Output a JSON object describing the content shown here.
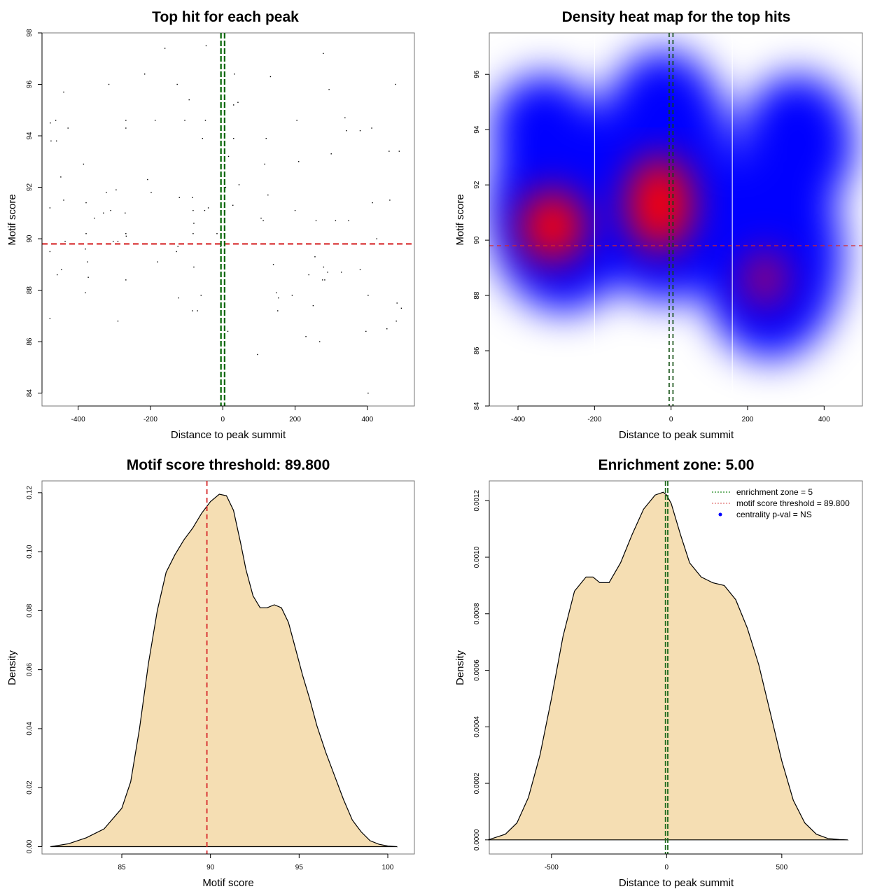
{
  "chart_data": [
    {
      "id": "scatter",
      "type": "scatter",
      "title": "Top hit for each peak",
      "xlabel": "Distance to peak summit",
      "ylabel": "Motif score",
      "xlim": [
        -500,
        530
      ],
      "ylim": [
        83.5,
        98
      ],
      "xticks": [
        -400,
        -200,
        0,
        200,
        400
      ],
      "yticks": [
        84,
        86,
        88,
        90,
        92,
        94,
        96,
        98
      ],
      "threshold_y": 89.8,
      "enrichment_zone_x": [
        -5,
        5
      ],
      "colors": {
        "points": "#000000",
        "threshold": "#d62728",
        "zone": "#006400"
      },
      "points": [
        [
          -477,
          94.5
        ],
        [
          -475,
          93.8
        ],
        [
          -462,
          94.6
        ],
        [
          -460,
          93.8
        ],
        [
          -478,
          91.2
        ],
        [
          -478,
          89.5
        ],
        [
          -478,
          86.9
        ],
        [
          -448,
          92.4
        ],
        [
          -440,
          95.7
        ],
        [
          -440,
          91.5
        ],
        [
          -436,
          89.9
        ],
        [
          -446,
          88.8
        ],
        [
          -458,
          88.6
        ],
        [
          -428,
          94.3
        ],
        [
          -385,
          92.9
        ],
        [
          -378,
          91.4
        ],
        [
          -378,
          90.2
        ],
        [
          -380,
          89.6
        ],
        [
          -374,
          89.1
        ],
        [
          -372,
          88.5
        ],
        [
          -380,
          87.9
        ],
        [
          -355,
          90.8
        ],
        [
          -315,
          96.0
        ],
        [
          -330,
          91.0
        ],
        [
          -322,
          91.8
        ],
        [
          -310,
          91.1
        ],
        [
          -303,
          89.9
        ],
        [
          -295,
          91.9
        ],
        [
          -290,
          89.9
        ],
        [
          -290,
          86.8
        ],
        [
          -268,
          94.6
        ],
        [
          -268,
          94.3
        ],
        [
          -270,
          91.0
        ],
        [
          -268,
          90.2
        ],
        [
          -267,
          90.1
        ],
        [
          -268,
          88.4
        ],
        [
          -216,
          96.4
        ],
        [
          -208,
          92.3
        ],
        [
          -198,
          91.8
        ],
        [
          -187,
          94.6
        ],
        [
          -180,
          89.1
        ],
        [
          -160,
          97.4
        ],
        [
          -126,
          96.0
        ],
        [
          -120,
          91.6
        ],
        [
          -128,
          89.5
        ],
        [
          -124,
          89.7
        ],
        [
          -122,
          87.7
        ],
        [
          -105,
          94.6
        ],
        [
          -93,
          95.4
        ],
        [
          -84,
          91.6
        ],
        [
          -82,
          91.1
        ],
        [
          -80,
          90.6
        ],
        [
          -82,
          90.2
        ],
        [
          -80,
          88.9
        ],
        [
          -84,
          87.2
        ],
        [
          -70,
          87.2
        ],
        [
          -60,
          87.8
        ],
        [
          -56,
          93.9
        ],
        [
          -50,
          91.1
        ],
        [
          -48,
          94.6
        ],
        [
          -46,
          97.5
        ],
        [
          -40,
          91.2
        ],
        [
          -16,
          90.2
        ],
        [
          -6,
          89.7
        ],
        [
          4,
          90.2
        ],
        [
          8,
          92.0
        ],
        [
          14,
          86.4
        ],
        [
          16,
          93.2
        ],
        [
          28,
          91.3
        ],
        [
          30,
          95.2
        ],
        [
          32,
          96.4
        ],
        [
          30,
          93.9
        ],
        [
          42,
          95.3
        ],
        [
          45,
          92.1
        ],
        [
          96,
          85.5
        ],
        [
          106,
          90.8
        ],
        [
          112,
          90.7
        ],
        [
          116,
          92.9
        ],
        [
          120,
          93.9
        ],
        [
          125,
          91.7
        ],
        [
          132,
          96.3
        ],
        [
          140,
          89.0
        ],
        [
          148,
          87.9
        ],
        [
          152,
          87.2
        ],
        [
          154,
          87.7
        ],
        [
          192,
          87.8
        ],
        [
          200,
          91.1
        ],
        [
          205,
          94.6
        ],
        [
          210,
          93.0
        ],
        [
          230,
          86.2
        ],
        [
          238,
          88.6
        ],
        [
          250,
          87.4
        ],
        [
          255,
          89.3
        ],
        [
          258,
          90.7
        ],
        [
          268,
          86.0
        ],
        [
          276,
          88.4
        ],
        [
          279,
          88.9
        ],
        [
          282,
          88.4
        ],
        [
          278,
          97.2
        ],
        [
          290,
          88.7
        ],
        [
          294,
          95.8
        ],
        [
          300,
          93.3
        ],
        [
          312,
          90.7
        ],
        [
          328,
          88.7
        ],
        [
          338,
          94.7
        ],
        [
          342,
          94.2
        ],
        [
          348,
          90.7
        ],
        [
          380,
          94.2
        ],
        [
          380,
          88.8
        ],
        [
          396,
          86.4
        ],
        [
          402,
          87.8
        ],
        [
          402,
          84.0
        ],
        [
          412,
          94.3
        ],
        [
          414,
          91.4
        ],
        [
          426,
          90.0
        ],
        [
          454,
          86.5
        ],
        [
          460,
          93.4
        ],
        [
          462,
          91.5
        ],
        [
          478,
          96.0
        ],
        [
          480,
          86.8
        ],
        [
          482,
          87.5
        ],
        [
          488,
          93.4
        ],
        [
          494,
          87.3
        ]
      ]
    },
    {
      "id": "heatmap",
      "type": "heatmap",
      "title": "Density heat map for the top hits",
      "xlabel": "Distance to peak summit",
      "ylabel": "Motif score",
      "xlim": [
        -475,
        500
      ],
      "ylim": [
        84,
        97.5
      ],
      "xticks": [
        -400,
        -200,
        0,
        200,
        400
      ],
      "yticks": [
        84,
        86,
        88,
        90,
        92,
        94,
        96
      ],
      "threshold_y": 89.8,
      "enrichment_zone_x": [
        -5,
        5
      ],
      "white_vertical_lines_x": [
        -200,
        160
      ],
      "colorscale": [
        "#ffffff",
        "#0000ff",
        "#ff0000"
      ],
      "density_peaks": [
        {
          "x": -310,
          "y": 90.5,
          "level": 0.85
        },
        {
          "x": -30,
          "y": 91.3,
          "level": 1.0
        },
        {
          "x": 245,
          "y": 88.6,
          "level": 0.55
        },
        {
          "x": -300,
          "y": 93.0,
          "level": 0.35
        },
        {
          "x": 300,
          "y": 93.5,
          "level": 0.3
        },
        {
          "x": 20,
          "y": 95.0,
          "level": 0.3
        }
      ]
    },
    {
      "id": "score-density",
      "type": "area",
      "title": "Motif score threshold: 89.800",
      "xlabel": "Motif score",
      "ylabel": "Density",
      "xlim": [
        80.5,
        101.5
      ],
      "ylim": [
        -0.0025,
        0.124
      ],
      "xticks": [
        85,
        90,
        95,
        100
      ],
      "yticks": [
        "0.00",
        "0.02",
        "0.04",
        "0.06",
        "0.08",
        "0.10",
        "0.12"
      ],
      "threshold_x": 89.8,
      "fill": "#f5deb3",
      "x": [
        81.0,
        82.0,
        83.0,
        84.0,
        85.0,
        85.5,
        86.0,
        86.5,
        87.0,
        87.5,
        88.0,
        88.5,
        89.0,
        89.5,
        90.0,
        90.5,
        90.9,
        91.3,
        91.7,
        92.0,
        92.4,
        92.8,
        93.2,
        93.6,
        94.0,
        94.4,
        94.8,
        95.2,
        95.6,
        96.0,
        96.5,
        97.0,
        97.5,
        98.0,
        98.5,
        99.0,
        99.5,
        100.0,
        100.5
      ],
      "y": [
        0.0,
        0.001,
        0.003,
        0.006,
        0.013,
        0.022,
        0.04,
        0.062,
        0.08,
        0.093,
        0.099,
        0.104,
        0.108,
        0.113,
        0.117,
        0.1195,
        0.119,
        0.114,
        0.103,
        0.094,
        0.085,
        0.081,
        0.081,
        0.082,
        0.081,
        0.076,
        0.067,
        0.058,
        0.05,
        0.041,
        0.032,
        0.024,
        0.016,
        0.009,
        0.005,
        0.002,
        0.0008,
        0.0002,
        0.0
      ]
    },
    {
      "id": "distance-density",
      "type": "area",
      "title": "Enrichment zone: 5.00",
      "xlabel": "Distance to peak summit",
      "ylabel": "Density",
      "xlim": [
        -770,
        850
      ],
      "ylim": [
        -5e-05,
        0.00127
      ],
      "xticks": [
        -500,
        0,
        500
      ],
      "yticks": [
        "0.0000",
        "0.0002",
        "0.0004",
        "0.0006",
        "0.0008",
        "0.0010",
        "0.0012"
      ],
      "enrichment_zone_x": [
        -5,
        5
      ],
      "fill": "#f5deb3",
      "x": [
        -775,
        -700,
        -650,
        -600,
        -550,
        -500,
        -450,
        -400,
        -350,
        -320,
        -290,
        -250,
        -200,
        -150,
        -100,
        -50,
        -15,
        0,
        20,
        60,
        100,
        150,
        200,
        250,
        300,
        350,
        400,
        450,
        500,
        550,
        600,
        650,
        700,
        750,
        785
      ],
      "y": [
        0.0,
        2e-05,
        6e-05,
        0.00015,
        0.0003,
        0.0005,
        0.00072,
        0.00088,
        0.00093,
        0.00093,
        0.00091,
        0.00091,
        0.00098,
        0.00108,
        0.00117,
        0.00122,
        0.00123,
        0.00122,
        0.00119,
        0.00108,
        0.00098,
        0.00093,
        0.00091,
        0.0009,
        0.00085,
        0.00075,
        0.00062,
        0.00045,
        0.00028,
        0.00014,
        6e-05,
        2e-05,
        5e-06,
        1e-06,
        0.0
      ],
      "legend": {
        "position": "top-right",
        "items": [
          {
            "label": "enrichment zone = 5",
            "color": "#228b22",
            "style": "dotted-line"
          },
          {
            "label": "motif score threshold = 89.800",
            "color": "#e07070",
            "style": "dotted-line"
          },
          {
            "label": "centrality p-val = NS",
            "color": "#0000ff",
            "style": "point"
          }
        ]
      }
    }
  ]
}
